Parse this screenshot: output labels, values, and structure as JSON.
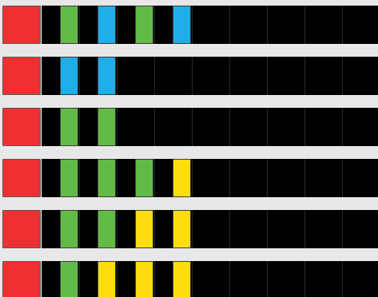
{
  "colors": {
    "red": "#f03030",
    "green": "#62bb46",
    "blue": "#1eaee8",
    "yellow": "#fedd10",
    "empty": "#000000",
    "background": "#e8e8e8"
  },
  "rows": [
    {
      "head": "red",
      "slots": [
        "green",
        "blue",
        "green",
        "blue",
        "empty",
        "empty",
        "empty",
        "empty",
        "empty"
      ]
    },
    {
      "head": "red",
      "slots": [
        "blue",
        "blue",
        "empty",
        "empty",
        "empty",
        "empty",
        "empty",
        "empty",
        "empty"
      ]
    },
    {
      "head": "red",
      "slots": [
        "green",
        "green",
        "empty",
        "empty",
        "empty",
        "empty",
        "empty",
        "empty",
        "empty"
      ]
    },
    {
      "head": "red",
      "slots": [
        "green",
        "green",
        "green",
        "yellow",
        "empty",
        "empty",
        "empty",
        "empty",
        "empty"
      ]
    },
    {
      "head": "red",
      "slots": [
        "green",
        "green",
        "yellow",
        "yellow",
        "empty",
        "empty",
        "empty",
        "empty",
        "empty"
      ]
    },
    {
      "head": "red",
      "slots": [
        "green",
        "yellow",
        "yellow",
        "yellow",
        "empty",
        "empty",
        "empty",
        "empty",
        "empty"
      ]
    }
  ]
}
